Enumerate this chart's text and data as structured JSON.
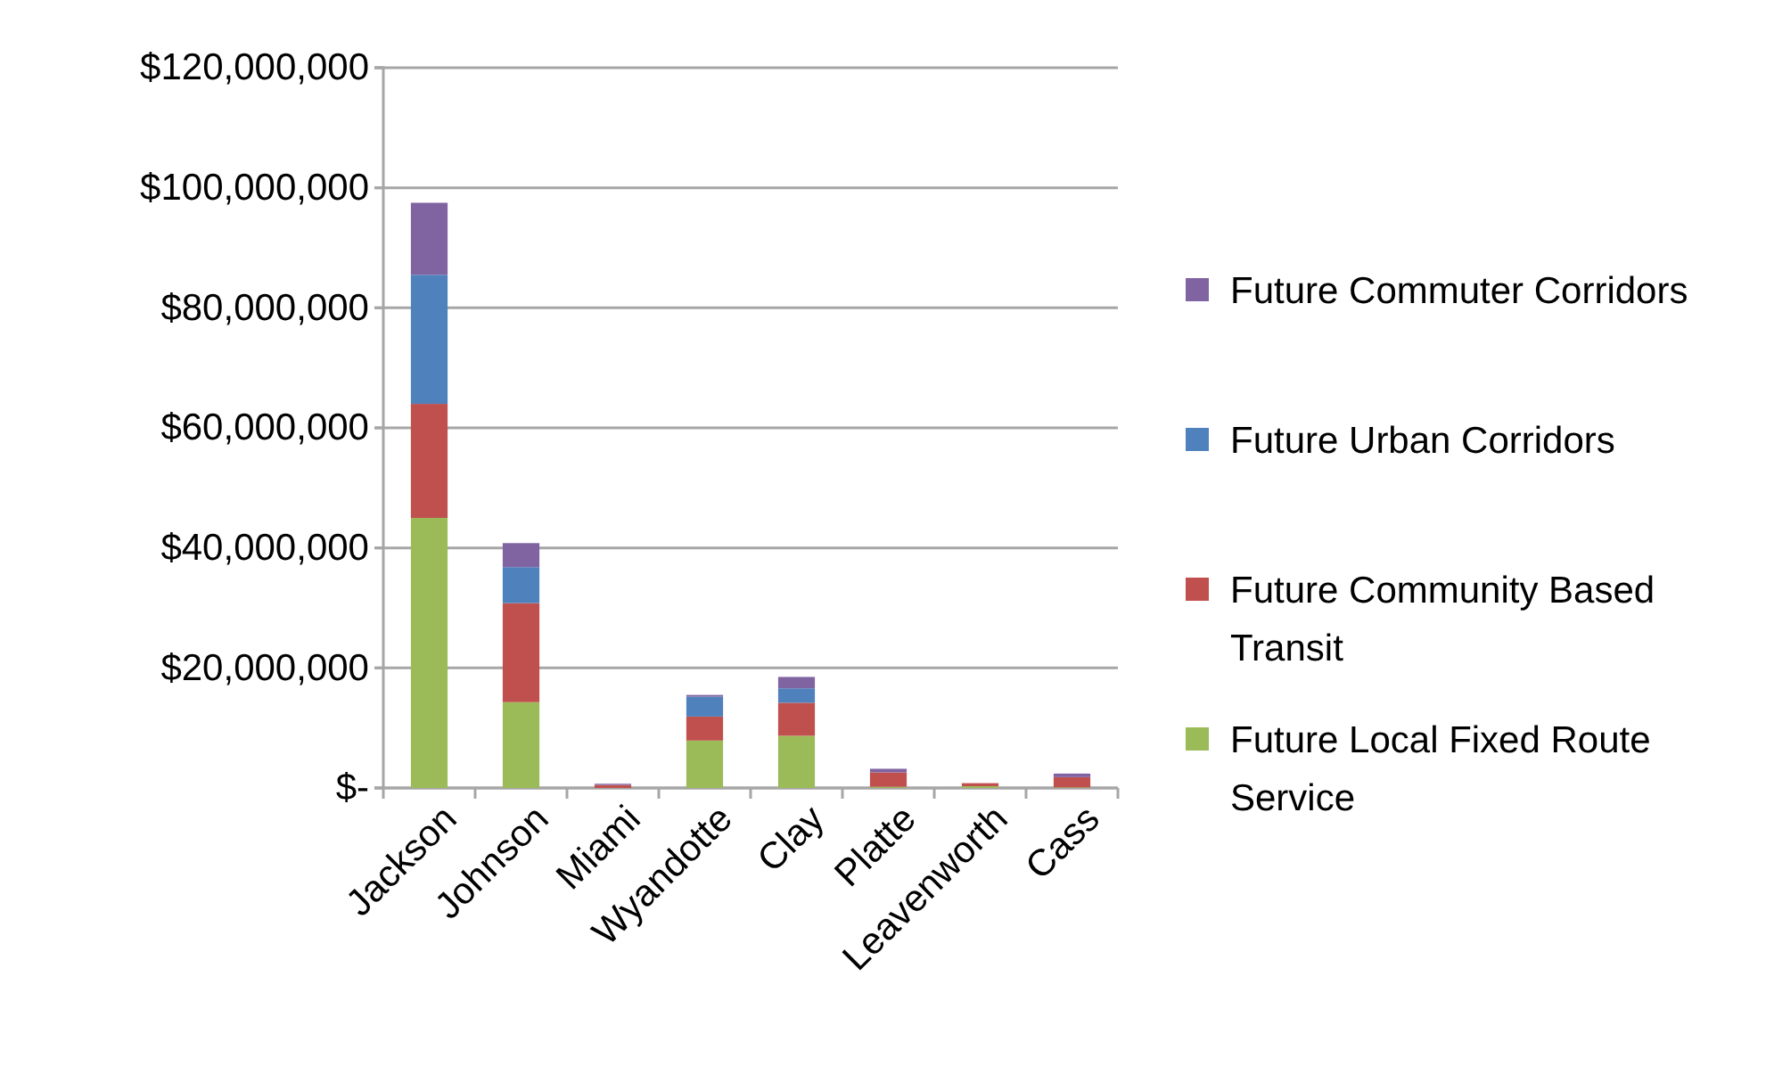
{
  "chart_data": {
    "type": "bar",
    "stacked": true,
    "categories": [
      "Jackson",
      "Johnson",
      "Miami",
      "Wyandotte",
      "Clay",
      "Platte",
      "Leavenworth",
      "Cass"
    ],
    "series": [
      {
        "name": "Future Local Fixed Route Service",
        "color": "#9bbb59",
        "values": [
          45000000,
          14300000,
          0,
          7900000,
          8700000,
          200000,
          300000,
          100000
        ]
      },
      {
        "name": "Future Community Based Transit",
        "color": "#c0504d",
        "values": [
          19000000,
          16500000,
          500000,
          4000000,
          5500000,
          2400000,
          500000,
          1700000
        ]
      },
      {
        "name": "Future Urban Corridors",
        "color": "#4f81bd",
        "values": [
          21500000,
          6000000,
          0,
          3300000,
          2400000,
          0,
          0,
          0
        ]
      },
      {
        "name": "Future Commuter Corridors",
        "color": "#8064a2",
        "values": [
          12000000,
          4000000,
          200000,
          300000,
          1900000,
          600000,
          0,
          600000
        ]
      }
    ],
    "ylim": [
      0,
      120000000
    ],
    "yticks": [
      {
        "value": 0,
        "label": "$-"
      },
      {
        "value": 20000000,
        "label": "$20,000,000"
      },
      {
        "value": 40000000,
        "label": "$40,000,000"
      },
      {
        "value": 60000000,
        "label": "$60,000,000"
      },
      {
        "value": 80000000,
        "label": "$80,000,000"
      },
      {
        "value": 100000000,
        "label": "$100,000,000"
      },
      {
        "value": 120000000,
        "label": "$120,000,000"
      }
    ],
    "grid": "y",
    "legend": "right"
  }
}
